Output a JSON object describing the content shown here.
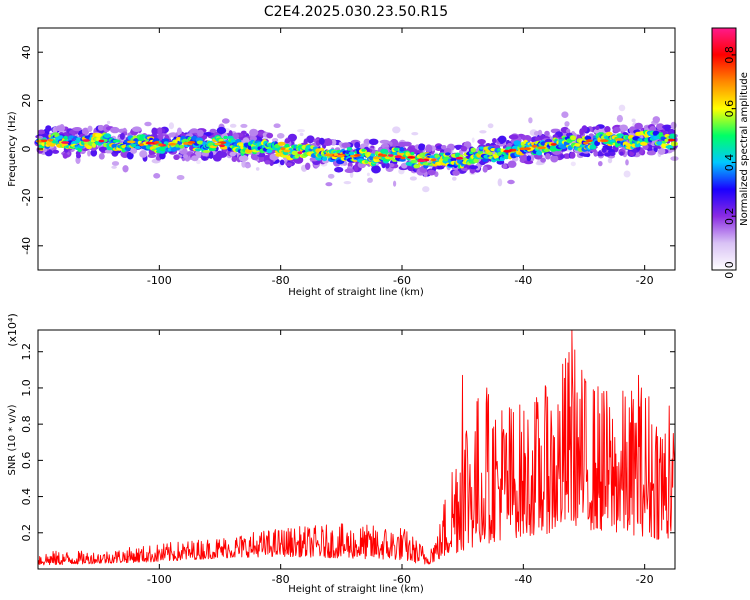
{
  "figure_title": "C2E4.2025.030.23.50.R15",
  "chart_data": [
    {
      "type": "heatmap",
      "title": "C2E4.2025.030.23.50.R15",
      "xlabel": "Height of straight line (km)",
      "ylabel": "Frequency (Hz)",
      "xlim": [
        -120,
        -15
      ],
      "ylim": [
        -50,
        50
      ],
      "x_ticks": [
        -100,
        -80,
        -60,
        -40,
        -20
      ],
      "y_ticks": [
        -40,
        -20,
        0,
        20,
        40
      ],
      "colorbar": {
        "label": "Normalized spectral amplitude",
        "range": [
          0.0,
          0.9
        ],
        "ticks": [
          0.0,
          0.2,
          0.4,
          0.6,
          0.8
        ],
        "colormap": [
          "#ffffff",
          "#d9c2f5",
          "#8a2be2",
          "#1a00ff",
          "#00c8ff",
          "#00ff66",
          "#ffff00",
          "#ff8800",
          "#ff0000",
          "#ff1a8c"
        ]
      },
      "ridge": {
        "x": [
          -120,
          -110,
          -100,
          -90,
          -80,
          -70,
          -60,
          -55,
          -50,
          -40,
          -30,
          -20,
          -15
        ],
        "frequency": [
          3,
          3,
          2,
          2,
          0,
          -3,
          -3,
          -5,
          -4,
          0,
          3,
          4,
          4
        ],
        "peak_amplitude": 0.85
      }
    },
    {
      "type": "line",
      "xlabel": "Height of straight line (km)",
      "ylabel": "SNR (10 * v/v)",
      "y_multiplier": "(x10⁴)",
      "xlim": [
        -120,
        -15
      ],
      "ylim": [
        0,
        1.32
      ],
      "x_ticks": [
        -100,
        -80,
        -60,
        -40,
        -20
      ],
      "y_ticks": [
        0.2,
        0.4,
        0.6,
        0.8,
        1.0,
        1.2
      ],
      "color": "#ff0000",
      "envelope": {
        "x": [
          -120,
          -110,
          -100,
          -90,
          -80,
          -70,
          -60,
          -56,
          -54,
          -50,
          -45,
          -40,
          -35,
          -32,
          -30,
          -25,
          -20,
          -16,
          -15
        ],
        "low": [
          0.02,
          0.03,
          0.04,
          0.06,
          0.07,
          0.06,
          0.05,
          0.02,
          0.05,
          0.1,
          0.15,
          0.18,
          0.2,
          0.25,
          0.22,
          0.2,
          0.18,
          0.15,
          0.3
        ],
        "high": [
          0.1,
          0.1,
          0.14,
          0.18,
          0.23,
          0.25,
          0.24,
          0.12,
          0.22,
          0.98,
          1.0,
          0.92,
          1.05,
          1.3,
          1.1,
          0.98,
          1.05,
          0.9,
          0.72
        ],
        "spikes": [
          [
            -50,
            1.07
          ],
          [
            -46,
            1.0
          ],
          [
            -36,
            0.95
          ],
          [
            -32,
            1.32
          ],
          [
            -27,
            0.97
          ],
          [
            -21,
            1.07
          ],
          [
            -16,
            0.9
          ]
        ]
      }
    }
  ]
}
